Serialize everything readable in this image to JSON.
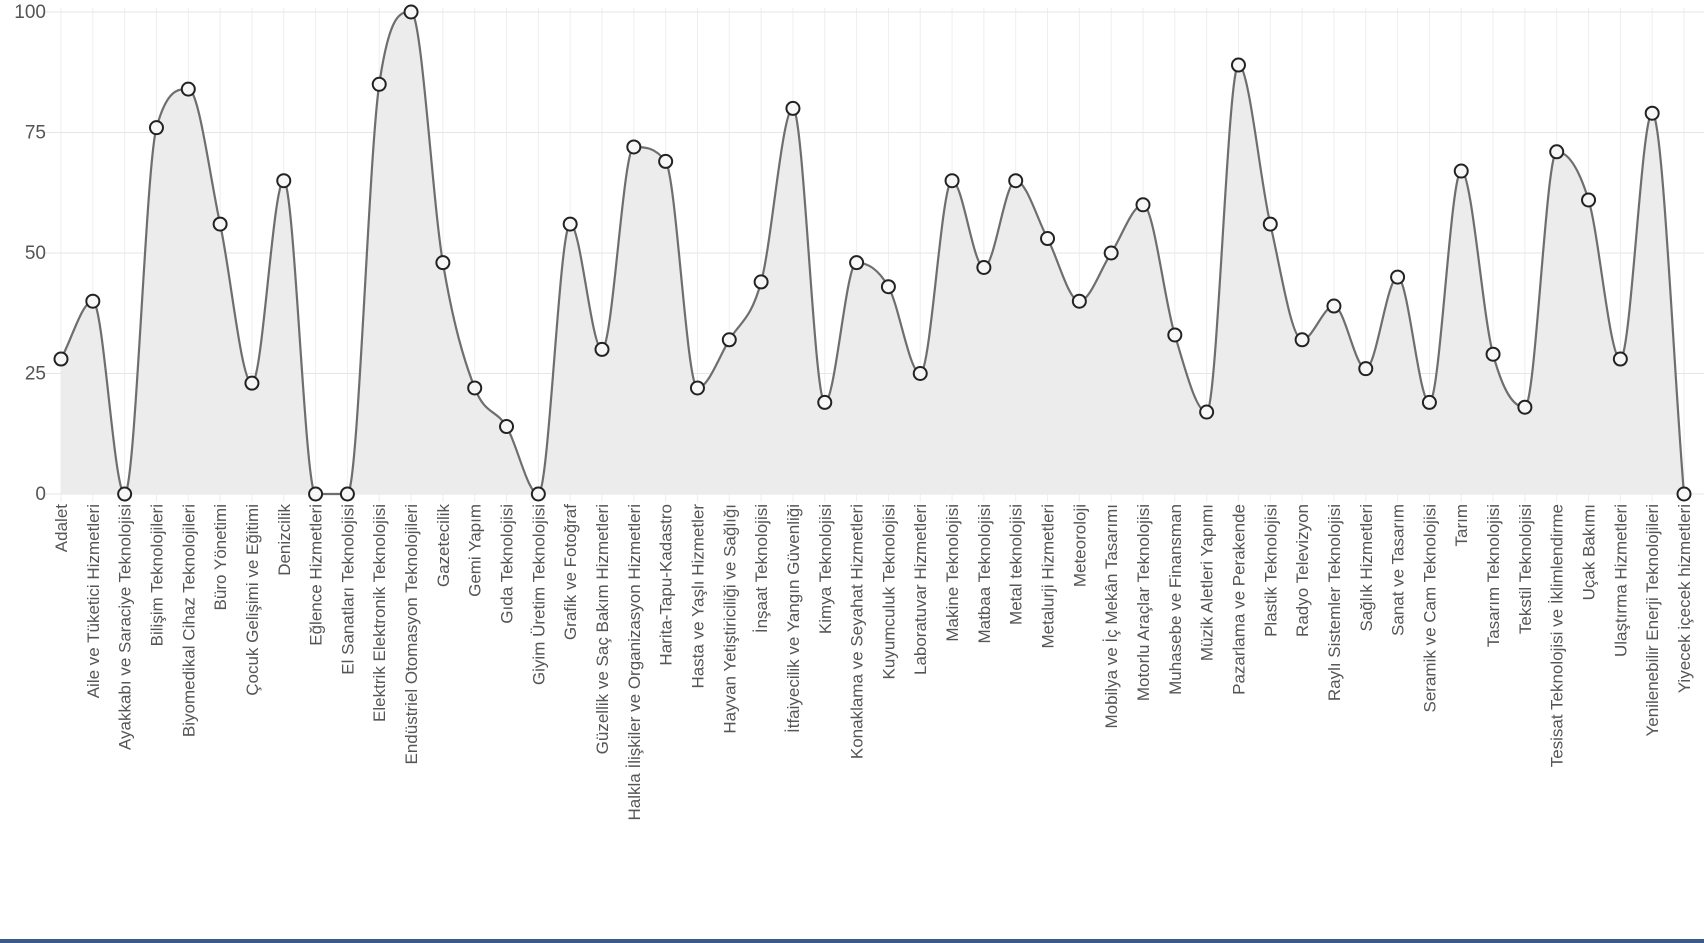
{
  "chart_data": {
    "type": "area",
    "title": "",
    "xlabel": "",
    "ylabel": "",
    "ylim": [
      0,
      100
    ],
    "yticks": [
      0,
      25,
      50,
      75,
      100
    ],
    "grid": true,
    "colors": {
      "line": "#6e6e6e",
      "fill": "#ececec",
      "point_fill": "#f7f7f7",
      "point_stroke": "#222222"
    },
    "categories": [
      "Adalet",
      "Aile ve Tüketici Hizmetleri",
      "Ayakkabı ve Saraciye Teknolojisi",
      "Bilişim Teknolojileri",
      "Biyomedikal Cihaz Teknolojileri",
      "Büro Yönetimi",
      "Çocuk Gelişimi ve Eğitimi",
      "Denizcilik",
      "Eğlence Hizmetleri",
      "El Sanatları Teknolojisi",
      "Elektrik Elektronik Teknolojisi",
      "Endüstriel Otomasyon Teknolojileri",
      "Gazetecilik",
      "Gemi Yapım",
      "Gıda Teknolojisi",
      "Giyim Üretim Teknolojisi",
      "Grafik ve Fotoğraf",
      "Güzellik ve Saç Bakım Hizmetleri",
      "Halkla İlişkiler ve Organizasyon Hizmetleri",
      "Harita-Tapu-Kadastro",
      "Hasta ve Yaşlı Hizmetler",
      "Hayvan Yetiştiriciliği ve Sağlığı",
      "İnşaat Teknolojisi",
      "İtfaiyecilik ve Yangın Güvenliği",
      "Kimya Teknolojisi",
      "Konaklama ve Seyahat Hizmetleri",
      "Kuyumculuk Teknolojisi",
      "Laboratuvar Hizmetleri",
      "Makine Teknolojisi",
      "Matbaa Teknolojisi",
      "Metal teknolojisi",
      "Metalurji Hizmetleri",
      "Meteoroloji",
      "Mobilya ve İç Mekân Tasarımı",
      "Motorlu Araçlar Teknolojisi",
      "Muhasebe ve Finansman",
      "Müzik Aletleri Yapımı",
      "Pazarlama ve Perakende",
      "Plastik Teknolojisi",
      "Radyo Televizyon",
      "Raylı Sistemler Teknolojisi",
      "Sağlık Hizmetleri",
      "Sanat ve Tasarım",
      "Seramik ve Cam Teknolojisi",
      "Tarım",
      "Tasarım Teknolojisi",
      "Tekstil Teknolojisi",
      "Tesisat Teknolojisi ve İklimlendirme",
      "Uçak Bakımı",
      "Ulaştırma Hizmetleri",
      "Yenilenebilir Enerji Teknolojileri",
      "Yiyecek içecek hizmetleri"
    ],
    "values": [
      28,
      40,
      0,
      76,
      84,
      56,
      23,
      65,
      0,
      0,
      85,
      100,
      48,
      22,
      14,
      0,
      56,
      30,
      72,
      69,
      22,
      32,
      44,
      80,
      19,
      48,
      43,
      25,
      65,
      47,
      65,
      53,
      40,
      50,
      60,
      33,
      17,
      89,
      56,
      32,
      39,
      26,
      45,
      19,
      67,
      29,
      18,
      71,
      61,
      28,
      79,
      0
    ]
  }
}
